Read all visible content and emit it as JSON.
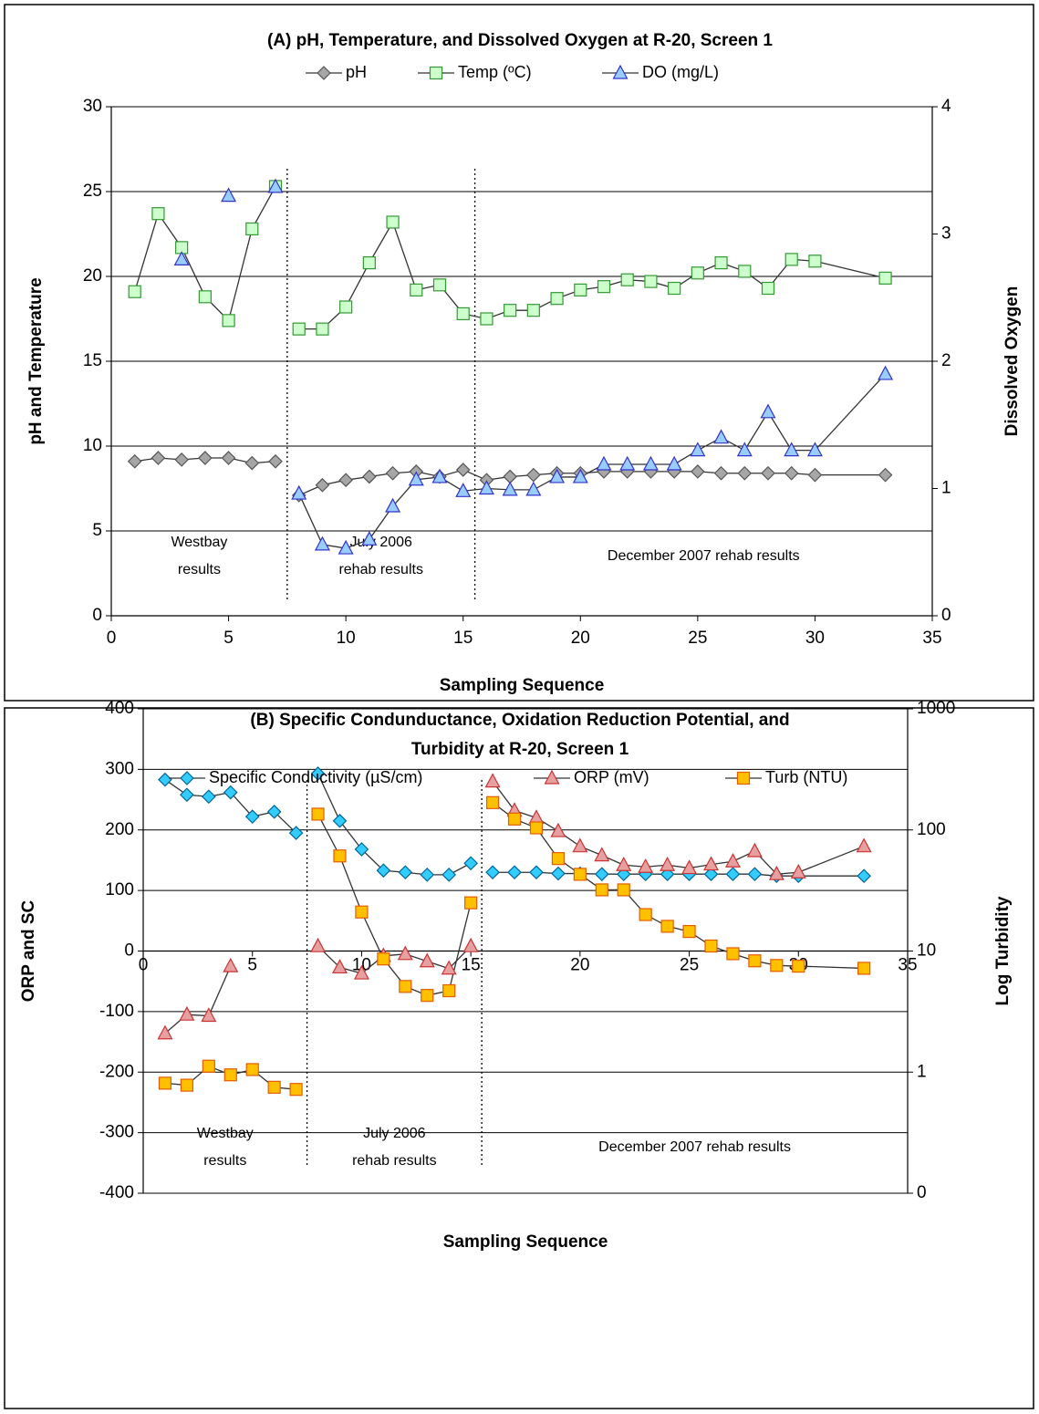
{
  "chart_data": [
    {
      "type": "line",
      "title": [
        "(A)    pH, Temperature, and Dissolved Oxygen at R-20, Screen 1"
      ],
      "xlabel": "Sampling Sequence",
      "ylabel": "pH and Temperature",
      "y2label": "Dissolved Oxygen",
      "xlim": [
        0,
        35
      ],
      "xticks": [
        0,
        5,
        10,
        15,
        20,
        25,
        30,
        35
      ],
      "ylim": [
        0,
        30
      ],
      "yticks": [
        0,
        5,
        10,
        15,
        20,
        25,
        30
      ],
      "y2lim": [
        0,
        4
      ],
      "y2ticks": [
        0,
        1,
        2,
        3,
        4
      ],
      "grid": true,
      "legend": "top",
      "line_color": "#333333",
      "dividers": [
        7.5,
        15.5
      ],
      "regions": [
        {
          "lines": [
            "Westbay",
            "results"
          ]
        },
        {
          "lines": [
            "July 2006",
            "rehab results"
          ]
        },
        {
          "lines": [
            "December 2007 rehab results"
          ]
        }
      ],
      "x": [
        1,
        2,
        3,
        4,
        5,
        6,
        7,
        null,
        8,
        9,
        10,
        11,
        12,
        13,
        14,
        15,
        16,
        17,
        18,
        19,
        20,
        21,
        22,
        23,
        24,
        25,
        26,
        27,
        28,
        29,
        30,
        33
      ],
      "series": [
        {
          "name": "pH",
          "marker": "diamond",
          "color": "#a6a6a6",
          "stroke": "#555555",
          "values": [
            9.1,
            9.3,
            9.2,
            9.3,
            9.3,
            9.0,
            9.1,
            null,
            7.1,
            7.7,
            8.0,
            8.2,
            8.4,
            8.5,
            8.2,
            8.6,
            8.0,
            8.2,
            8.3,
            8.4,
            8.4,
            8.5,
            8.5,
            8.5,
            8.5,
            8.5,
            8.4,
            8.4,
            8.4,
            8.4,
            8.3,
            8.3
          ]
        },
        {
          "name": "Temp (ºC)",
          "marker": "square",
          "color": "#ccffcc",
          "stroke": "#339933",
          "values": [
            19.1,
            23.7,
            21.7,
            18.8,
            17.4,
            22.8,
            25.3,
            null,
            16.9,
            16.9,
            18.2,
            20.8,
            23.2,
            19.2,
            19.5,
            17.8,
            17.5,
            18.0,
            18.0,
            18.7,
            19.2,
            19.4,
            19.8,
            19.7,
            19.3,
            20.2,
            20.8,
            20.3,
            19.3,
            21.0,
            20.9,
            19.9
          ]
        },
        {
          "name": "DO (mg/L)",
          "marker": "triangle",
          "color": "#99ccff",
          "stroke": "#3333cc",
          "axis": "y2",
          "values": [
            null,
            null,
            2.8,
            null,
            3.3,
            null,
            3.37,
            null,
            0.96,
            0.56,
            0.53,
            0.6,
            0.86,
            1.07,
            1.09,
            0.98,
            1.0,
            0.99,
            0.99,
            1.09,
            1.09,
            1.19,
            1.19,
            1.19,
            1.19,
            1.3,
            1.4,
            1.3,
            1.6,
            1.3,
            1.3,
            1.9
          ]
        }
      ]
    },
    {
      "type": "line",
      "title": [
        "(B)    Specific Condunductance, Oxidation Reduction Potential, and",
        "Turbidity at R-20, Screen 1"
      ],
      "xlabel": "Sampling Sequence",
      "ylabel": "ORP and SC",
      "y2label": "Log Turbidity",
      "xlim": [
        0,
        35
      ],
      "xticks": [
        0,
        5,
        10,
        15,
        20,
        25,
        30,
        35
      ],
      "ylim": [
        -400,
        400
      ],
      "yticks": [
        -400,
        -300,
        -200,
        -100,
        0,
        100,
        200,
        300,
        400
      ],
      "y2lim": [
        0.1,
        1000
      ],
      "y2ticks": [
        {
          "value": 0.1,
          "label": "0"
        },
        1,
        10,
        100,
        1000
      ],
      "y2log": true,
      "grid": true,
      "legend": "top",
      "line_color": "#333333",
      "dividers": [
        7.5,
        15.5
      ],
      "regions": [
        {
          "lines": [
            "Westbay",
            "results"
          ]
        },
        {
          "lines": [
            "July 2006",
            "rehab results"
          ]
        },
        {
          "lines": [
            "December 2007 rehab results"
          ]
        }
      ],
      "x": [
        1,
        2,
        3,
        4,
        5,
        6,
        7,
        null,
        8,
        9,
        10,
        11,
        12,
        13,
        14,
        15,
        null,
        16,
        17,
        18,
        19,
        20,
        21,
        22,
        23,
        24,
        25,
        26,
        27,
        28,
        29,
        30,
        33
      ],
      "series": [
        {
          "name": "Specific Conductivity (µS/cm)",
          "marker": "diamond",
          "color": "#33ccff",
          "stroke": "#006699",
          "values": [
            283,
            258,
            255,
            262,
            222,
            230,
            195,
            null,
            293,
            215,
            168,
            133,
            130,
            126,
            126,
            145,
            null,
            130,
            130,
            130,
            128,
            128,
            127,
            127,
            127,
            127,
            127,
            127,
            127,
            127,
            124,
            124,
            124
          ]
        },
        {
          "name": "ORP (mV)",
          "marker": "triangle",
          "color": "#e6a0a0",
          "stroke": "#cc3333",
          "values": [
            -136,
            -105,
            -107,
            -25,
            null,
            null,
            null,
            null,
            8,
            -27,
            -37,
            -8,
            -5,
            -17,
            -29,
            8,
            null,
            280,
            232,
            220,
            198,
            173,
            158,
            142,
            139,
            142,
            137,
            143,
            148,
            165,
            127,
            130,
            173
          ]
        },
        {
          "name": "Turb (NTU)",
          "marker": "square",
          "color": "#ffc000",
          "stroke": "#e65c00",
          "axis": "y2",
          "values": [
            0.81,
            0.78,
            1.12,
            0.95,
            1.05,
            0.75,
            0.72,
            null,
            135,
            61,
            21,
            8.6,
            5.1,
            4.3,
            4.7,
            25,
            null,
            168,
            123,
            104,
            58,
            43,
            32,
            32,
            20,
            16,
            14.5,
            11,
            9.5,
            8.3,
            7.6,
            7.5,
            7.2
          ]
        }
      ]
    }
  ]
}
